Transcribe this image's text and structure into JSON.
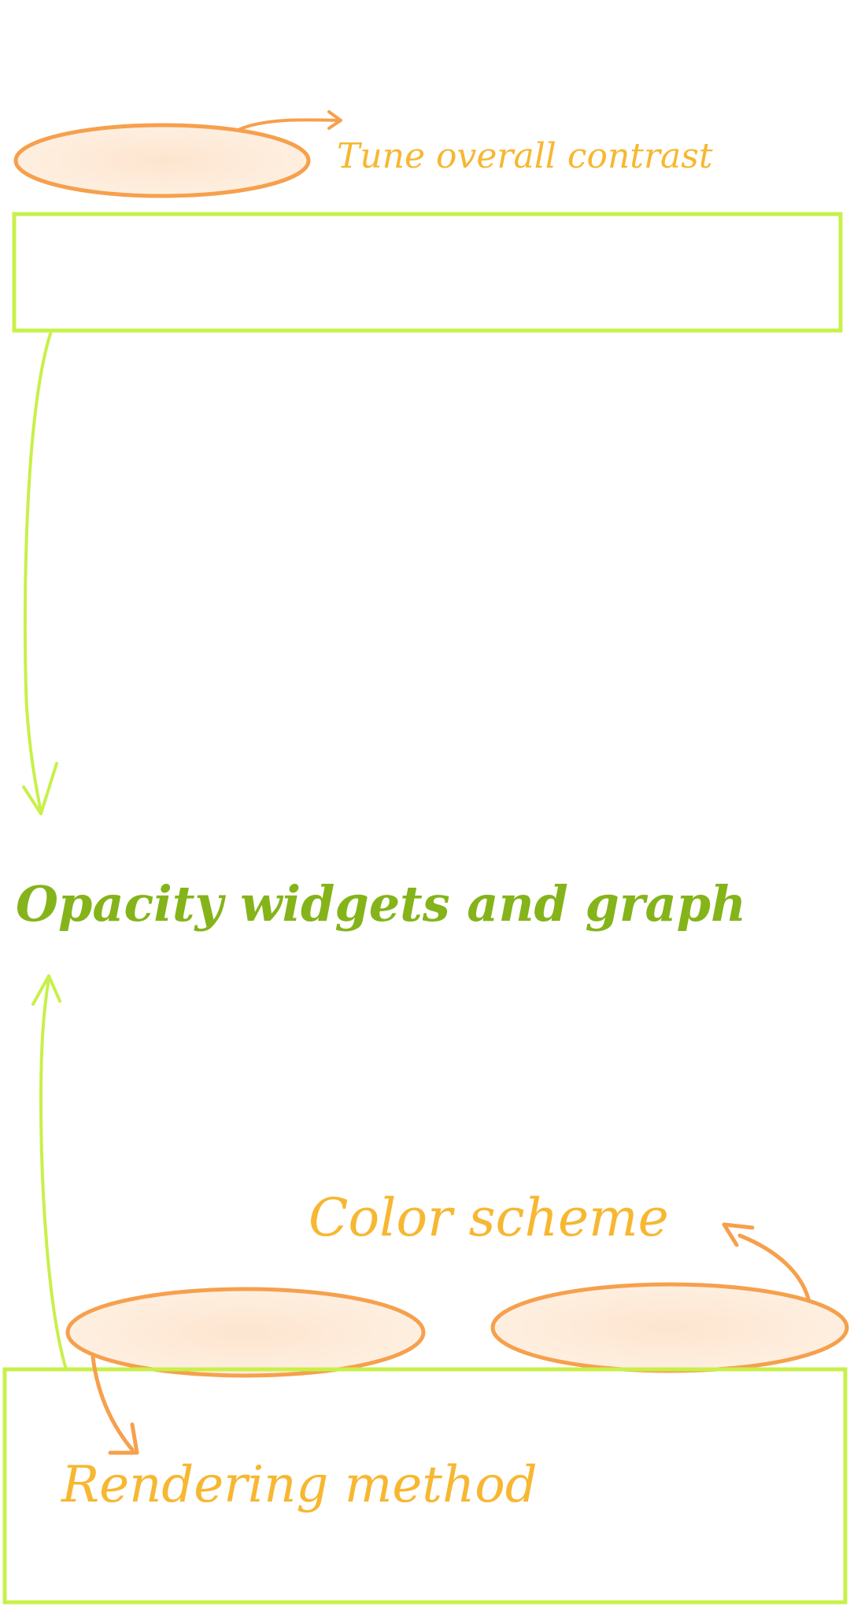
{
  "colors": {
    "orange_stroke": "#f6a04d",
    "orange_fill": "#fde5cf",
    "orange_text": "#f7b731",
    "green_stroke": "#c8f04a",
    "green_text": "#84b41a",
    "background": "#ffffff"
  },
  "annotations": {
    "tune_contrast": "Tune overall contrast",
    "opacity_widgets": "Opacity widgets and graph",
    "color_scheme": "Color scheme",
    "rendering_method": "Rendering method"
  }
}
